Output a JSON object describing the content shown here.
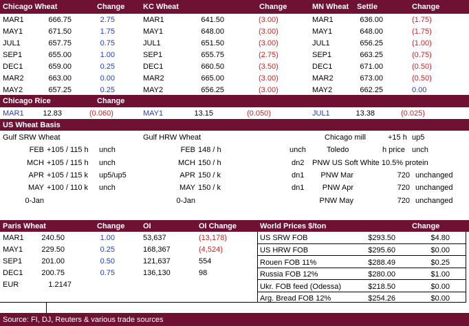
{
  "wheat_table": {
    "headers": {
      "chicago": "Chicago Wheat",
      "chicago_change": "Change",
      "kc": "KC Wheat",
      "kc_change": "Change",
      "mn": "MN Wheat",
      "mn_settle": "Settle",
      "mn_change": "Change"
    },
    "rows": [
      {
        "c_m": "MAR1",
        "c_p": "666.75",
        "c_ch": "2.75",
        "k_m": "MAR1",
        "k_p": "641.50",
        "k_ch": "(3.00)",
        "m_m": "MAR1",
        "m_p": "636.00",
        "m_ch": "(1.75)"
      },
      {
        "c_m": "MAY1",
        "c_p": "671.50",
        "c_ch": "1.75",
        "k_m": "MAY1",
        "k_p": "648.00",
        "k_ch": "(3.00)",
        "m_m": "MAY1",
        "m_p": "648.00",
        "m_ch": "(1.75)"
      },
      {
        "c_m": "JUL1",
        "c_p": "657.75",
        "c_ch": "0.75",
        "k_m": "JUL1",
        "k_p": "651.50",
        "k_ch": "(3.00)",
        "m_m": "JUL1",
        "m_p": "656.25",
        "m_ch": "(1.00)"
      },
      {
        "c_m": "SEP1",
        "c_p": "655.00",
        "c_ch": "1.00",
        "k_m": "SEP1",
        "k_p": "655.75",
        "k_ch": "(2.75)",
        "m_m": "SEP1",
        "m_p": "663.25",
        "m_ch": "(0.75)"
      },
      {
        "c_m": "DEC1",
        "c_p": "659.00",
        "c_ch": "0.25",
        "k_m": "DEC1",
        "k_p": "660.50",
        "k_ch": "(3.50)",
        "m_m": "DEC1",
        "m_p": "671.00",
        "m_ch": "(0.50)"
      },
      {
        "c_m": "MAR2",
        "c_p": "663.00",
        "c_ch": "0.00",
        "k_m": "MAR2",
        "k_p": "665.00",
        "k_ch": "(3.00)",
        "m_m": "MAR2",
        "m_p": "673.00",
        "m_ch": "(0.50)"
      },
      {
        "c_m": "MAY2",
        "c_p": "657.25",
        "c_ch": "0.25",
        "k_m": "MAY2",
        "k_p": "656.25",
        "k_ch": "(3.00)",
        "m_m": "MAY2",
        "m_p": "662.25",
        "m_ch": "0.00"
      }
    ]
  },
  "rice": {
    "title": "Chicago Rice",
    "change": "Change",
    "m1": "MAR1",
    "p1": "12.83",
    "c1": "(0.060)",
    "m2": "MAY1",
    "p2": "13.15",
    "c2": "(0.050)",
    "m3": "JUL1",
    "p3": "13.38",
    "c3": "(0.025)"
  },
  "basis": {
    "title": "US Wheat Basis",
    "srw_title": "Gulf SRW Wheat",
    "hrw_title": "Gulf HRW Wheat",
    "srw_rows": [
      {
        "m": "FEB",
        "v": "+105 / 115 h",
        "c": "unch"
      },
      {
        "m": "MCH",
        "v": "+105 / 115 h",
        "c": "unch"
      },
      {
        "m": "APR",
        "v": "+105 / 115 k",
        "c": "up5/up5"
      },
      {
        "m": "MAY",
        "v": "+100 / 110 k",
        "c": "unch"
      },
      {
        "m": "0-Jan",
        "v": "",
        "c": ""
      }
    ],
    "hrw_rows": [
      {
        "m": "FEB",
        "v": "148 / h",
        "c": "unch"
      },
      {
        "m": "MCH",
        "v": "150 / h",
        "c": "dn2"
      },
      {
        "m": "APR",
        "v": "150 / k",
        "c": "dn1"
      },
      {
        "m": "MAY",
        "v": "150 / k",
        "c": "dn1"
      },
      {
        "m": "0-Jan",
        "v": "",
        "c": ""
      }
    ],
    "chicago_mill": "Chicago mill",
    "cm_val": "+15 h",
    "cm_ch": "up5",
    "toledo": "Toledo",
    "tol_val": "h price",
    "tol_ch": "unch",
    "pnw_title": "PNW US Soft White 10.5% protein",
    "pnw_rows": [
      {
        "m": "PNW Mar",
        "v": "720",
        "c": "unchanged"
      },
      {
        "m": "PNW Apr",
        "v": "720",
        "c": "unchanged"
      },
      {
        "m": "PNW May",
        "v": "720",
        "c": "unchanged"
      }
    ]
  },
  "paris": {
    "headers": {
      "title": "Paris Wheat",
      "change": "Change",
      "oi": "OI",
      "oi_change": "OI Change"
    },
    "rows": [
      {
        "m": "MAR1",
        "p": "240.50",
        "c": "1.00",
        "oi": "53,637",
        "oic": "(13,178)",
        "oic_neg": true
      },
      {
        "m": "MAY1",
        "p": "229.50",
        "c": "0.25",
        "oi": "168,367",
        "oic": "(4,524)",
        "oic_neg": true
      },
      {
        "m": "SEP1",
        "p": "201.00",
        "c": "0.50",
        "oi": "121,637",
        "oic": "554",
        "oic_neg": false
      },
      {
        "m": "DEC1",
        "p": "200.75",
        "c": "0.75",
        "oi": "136,130",
        "oic": "98",
        "oic_neg": false
      }
    ],
    "eur_label": "EUR",
    "eur_value": "1.2147"
  },
  "world": {
    "headers": {
      "title": "World Prices $/ton",
      "change": "Change"
    },
    "rows": [
      {
        "n": "US SRW FOB",
        "p": "$293.50",
        "c": "$4.80"
      },
      {
        "n": "US HRW FOB",
        "p": "$295.60",
        "c": "$0.00"
      },
      {
        "n": "Rouen FOB 11%",
        "p": "$288.49",
        "c": "$0.25"
      },
      {
        "n": "Russia FOB 12%",
        "p": "$280.00",
        "c": "$1.00"
      },
      {
        "n": "Ukr. FOB feed (Odessa)",
        "p": "$218.50",
        "c": "$0.00"
      },
      {
        "n": "Arg. Bread FOB 12%",
        "p": "$254.26",
        "c": "$0.00"
      }
    ]
  },
  "footer": {
    "source": "Source: FI, DJ, Reuters & various trade sources"
  },
  "colors": {
    "band": "#6e1133",
    "positive": "#1f3bd1",
    "negative": "#d11f1f"
  }
}
